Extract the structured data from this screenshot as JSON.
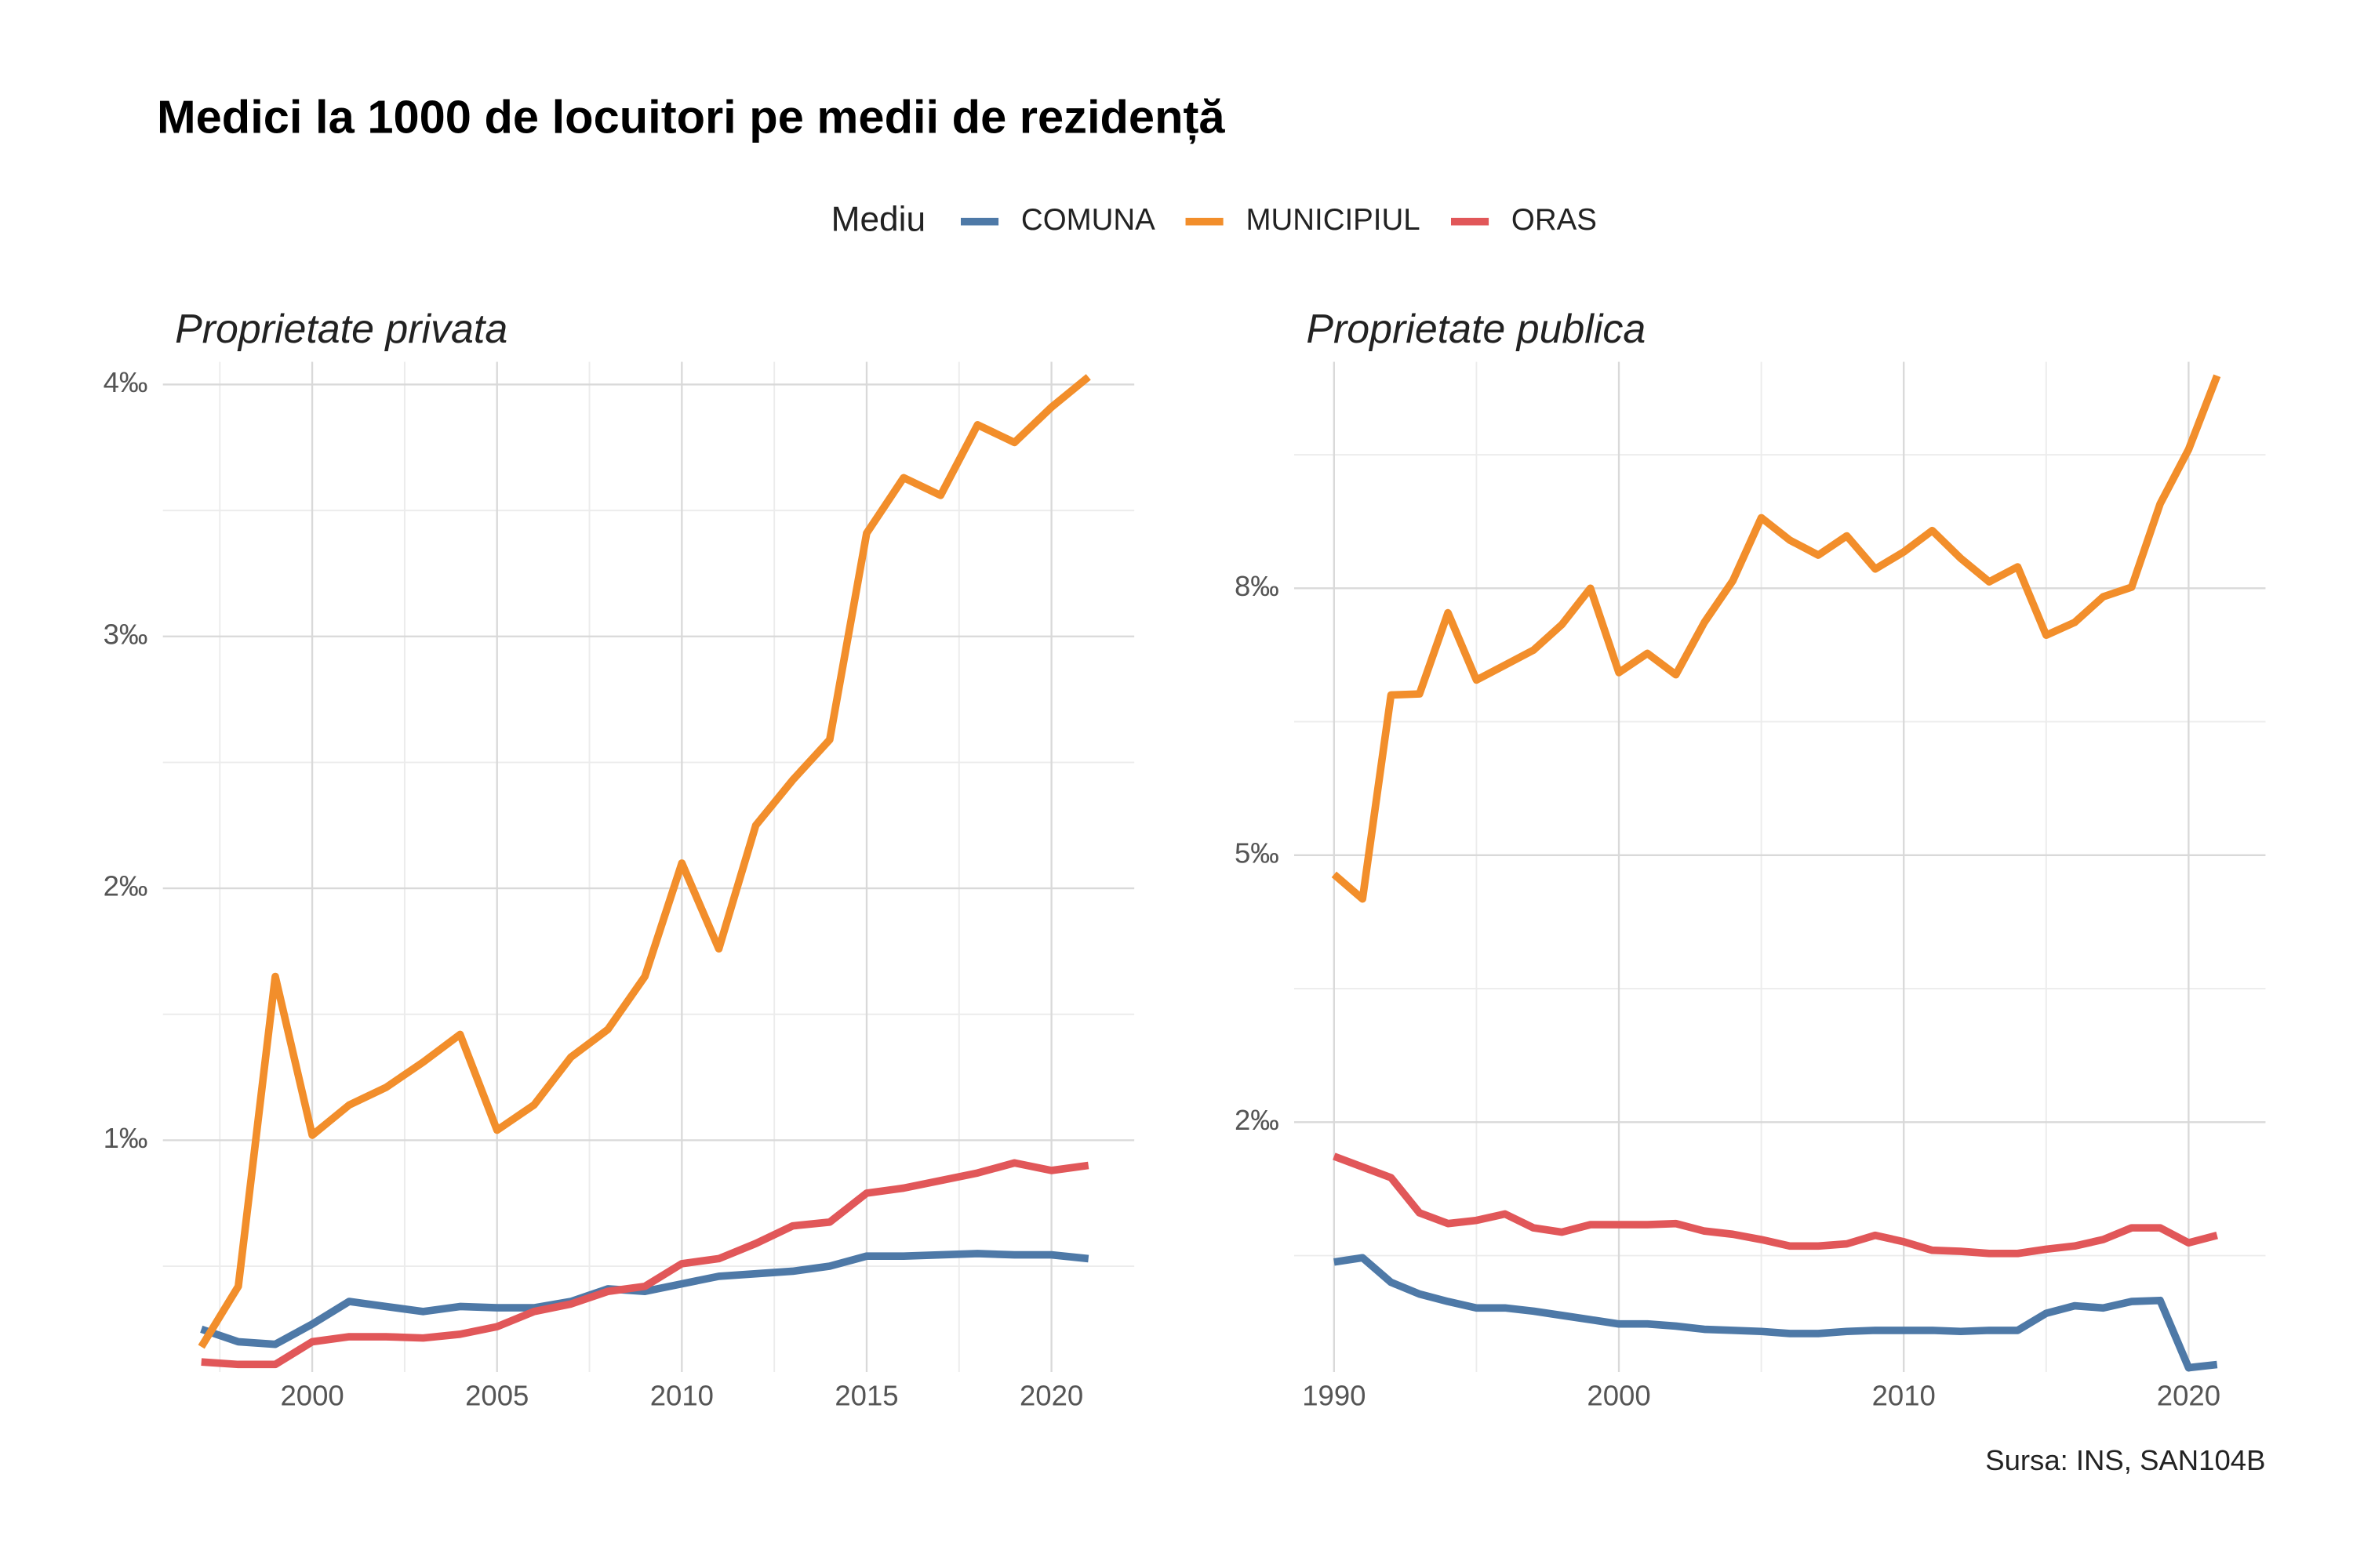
{
  "title": "Medici la 1000 de locuitori pe medii de rezidență",
  "legend_title": "Mediu",
  "caption": "Sursa: INS, SAN104B",
  "chart_data": [
    {
      "type": "line",
      "title": "Proprietate privata",
      "x": [
        1997,
        1998,
        1999,
        2000,
        2001,
        2002,
        2003,
        2004,
        2005,
        2006,
        2007,
        2008,
        2009,
        2010,
        2011,
        2012,
        2013,
        2014,
        2015,
        2016,
        2017,
        2018,
        2019,
        2020,
        2021
      ],
      "series": [
        {
          "name": "COMUNA",
          "color": "#4e79a7",
          "values": [
            0.25,
            0.2,
            0.19,
            0.27,
            0.36,
            0.34,
            0.32,
            0.34,
            0.335,
            0.335,
            0.36,
            0.41,
            0.4,
            0.43,
            0.46,
            0.47,
            0.48,
            0.5,
            0.54,
            0.54,
            0.545,
            0.55,
            0.545,
            0.545,
            0.53
          ]
        },
        {
          "name": "MUNICIPIUL",
          "color": "#f28e2b",
          "values": [
            0.18,
            0.42,
            1.65,
            1.02,
            1.14,
            1.21,
            1.31,
            1.42,
            1.04,
            1.14,
            1.33,
            1.44,
            1.65,
            2.1,
            1.76,
            2.25,
            2.43,
            2.59,
            3.41,
            3.63,
            3.56,
            3.84,
            3.77,
            3.91,
            4.03
          ]
        },
        {
          "name": "ORAS",
          "color": "#e15759",
          "values": [
            0.12,
            0.11,
            0.11,
            0.2,
            0.22,
            0.22,
            0.215,
            0.23,
            0.26,
            0.32,
            0.35,
            0.4,
            0.42,
            0.51,
            0.53,
            0.59,
            0.66,
            0.675,
            0.79,
            0.81,
            0.84,
            0.87,
            0.91,
            0.88,
            0.9
          ]
        }
      ],
      "xlim": [
        1995.96,
        2022.24
      ],
      "ylim": [
        0.08,
        4.09
      ],
      "xticks": [
        2000,
        2005,
        2010,
        2015,
        2020
      ],
      "yticks": [
        {
          "value": 1,
          "label": "1‰"
        },
        {
          "value": 2,
          "label": "2‰"
        },
        {
          "value": 3,
          "label": "3‰"
        },
        {
          "value": 4,
          "label": "4‰"
        }
      ],
      "minor_xticks": [
        1997.5,
        2002.5,
        2007.5,
        2012.5,
        2017.5
      ],
      "minor_yticks": [
        0.5,
        1.5,
        2.5,
        3.5
      ],
      "grid": true
    },
    {
      "type": "line",
      "title": "Proprietate publica",
      "x": [
        1990,
        1991,
        1992,
        1993,
        1994,
        1995,
        1996,
        1997,
        1998,
        1999,
        2000,
        2001,
        2002,
        2003,
        2004,
        2005,
        2006,
        2007,
        2008,
        2009,
        2010,
        2011,
        2012,
        2013,
        2014,
        2015,
        2016,
        2017,
        2018,
        2019,
        2020,
        2021
      ],
      "series": [
        {
          "name": "COMUNA",
          "color": "#4e79a7",
          "values": [
            1.19,
            1.23,
            1.0,
            0.89,
            0.82,
            0.76,
            0.76,
            0.73,
            0.69,
            0.65,
            0.61,
            0.61,
            0.59,
            0.56,
            0.55,
            0.54,
            0.52,
            0.52,
            0.54,
            0.55,
            0.55,
            0.55,
            0.54,
            0.55,
            0.55,
            0.71,
            0.78,
            0.76,
            0.82,
            0.83,
            0.2,
            0.23
          ]
        },
        {
          "name": "MUNICIPIUL",
          "color": "#f28e2b",
          "values": [
            4.82,
            4.59,
            6.5,
            6.51,
            7.27,
            6.64,
            6.78,
            6.92,
            7.16,
            7.5,
            6.71,
            6.89,
            6.69,
            7.18,
            7.57,
            8.16,
            7.95,
            7.81,
            7.99,
            7.68,
            7.84,
            8.04,
            7.78,
            7.56,
            7.7,
            7.06,
            7.18,
            7.42,
            7.51,
            8.29,
            8.8,
            9.49
          ]
        },
        {
          "name": "ORAS",
          "color": "#e15759",
          "values": [
            2.18,
            2.08,
            1.98,
            1.65,
            1.55,
            1.58,
            1.64,
            1.51,
            1.47,
            1.54,
            1.54,
            1.54,
            1.55,
            1.48,
            1.45,
            1.4,
            1.34,
            1.34,
            1.36,
            1.44,
            1.38,
            1.3,
            1.29,
            1.27,
            1.27,
            1.31,
            1.34,
            1.4,
            1.51,
            1.51,
            1.37,
            1.44
          ]
        }
      ],
      "xlim": [
        1988.6,
        2022.7
      ],
      "ylim": [
        0.16,
        9.62
      ],
      "xticks": [
        1990,
        2000,
        2010,
        2020
      ],
      "yticks": [
        {
          "value": 2.5,
          "label": "2‰"
        },
        {
          "value": 5,
          "label": "5‰"
        },
        {
          "value": 7.5,
          "label": "8‰"
        }
      ],
      "minor_xticks": [
        1995,
        2005,
        2015
      ],
      "minor_yticks": [
        1.25,
        3.75,
        6.25,
        8.75
      ],
      "grid": true
    }
  ]
}
